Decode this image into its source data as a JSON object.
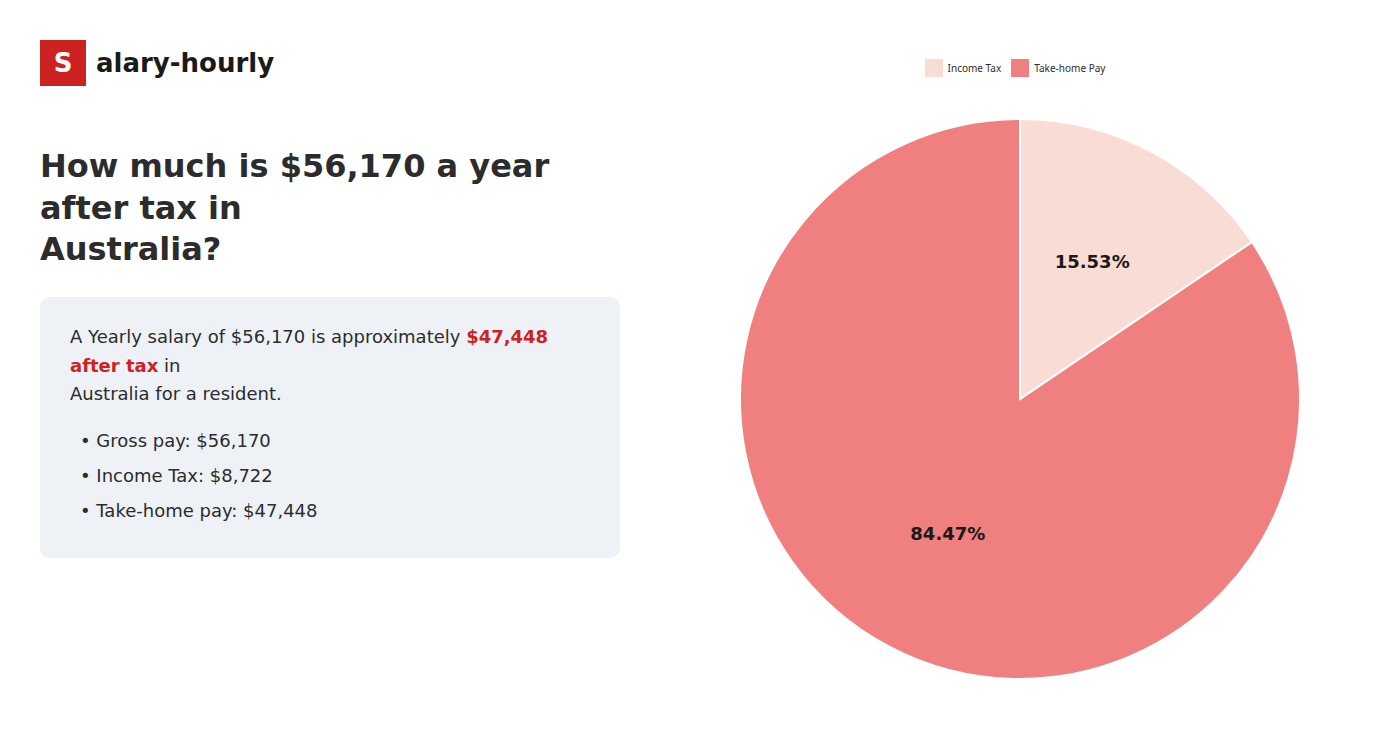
{
  "chart_data": {
    "type": "pie",
    "title": "How much is $56,170 a year after tax in\nAustralia?",
    "categories": [
      "Income Tax",
      "Take-home Pay"
    ],
    "values": [
      15.53,
      84.47
    ],
    "value_labels": [
      "15.53%",
      "84.47%"
    ],
    "colors": [
      "#f9ddd4",
      "#f08080"
    ],
    "data_labels": true,
    "legend": "top",
    "annotations": [
      {
        "text": "S",
        "color": "#cc2222"
      },
      {
        "text": "alary-hourly"
      },
      {
        "text": "A Yearly salary of $56,170 is approximately "
      },
      {
        "text": "$47,448 after tax",
        "color": "#cc2222"
      },
      {
        "text": " in"
      },
      {
        "text": "Australia for a resident."
      },
      {
        "text": "•  Gross pay: $56,170"
      },
      {
        "text": "•  Income Tax: $8,722"
      },
      {
        "text": "•  Take-home pay: $47,448"
      }
    ]
  }
}
